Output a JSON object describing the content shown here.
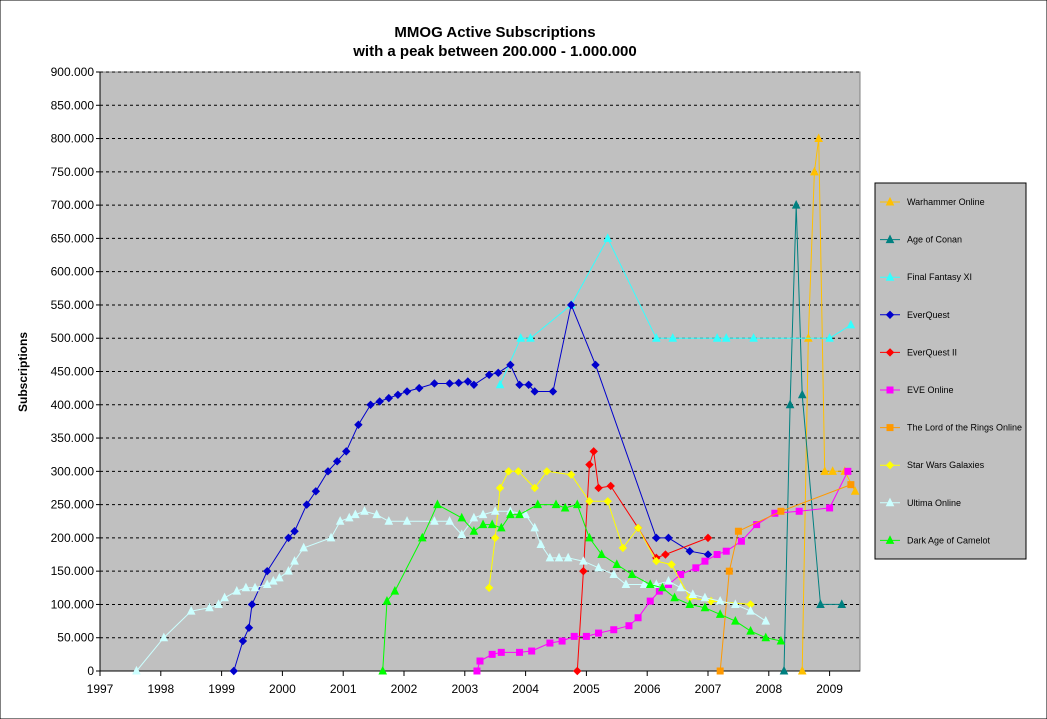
{
  "chart_data": {
    "type": "line",
    "title": "MMOG Active Subscriptions",
    "subtitle": "with a peak between 200.000 - 1.000.000",
    "ylabel": "Subscriptions",
    "xlabel": "",
    "xlim": [
      1997,
      2009.5
    ],
    "ylim": [
      0,
      900000
    ],
    "y_ticks": [
      "0",
      "50.000",
      "100.000",
      "150.000",
      "200.000",
      "250.000",
      "300.000",
      "350.000",
      "400.000",
      "450.000",
      "500.000",
      "550.000",
      "600.000",
      "650.000",
      "700.000",
      "750.000",
      "800.000",
      "850.000",
      "900.000"
    ],
    "x_ticks": [
      "1997",
      "1998",
      "1999",
      "2000",
      "2001",
      "2002",
      "2003",
      "2004",
      "2005",
      "2006",
      "2007",
      "2008",
      "2009"
    ],
    "grid": "horizontal dashed",
    "plot_background": "#c0c0c0",
    "legend_position": "right",
    "series": [
      {
        "name": "Warhammer Online",
        "color": "#ffc000",
        "marker": "triangle",
        "points": [
          [
            2008.55,
            0
          ],
          [
            2008.65,
            500000
          ],
          [
            2008.75,
            750000
          ],
          [
            2008.82,
            800000
          ],
          [
            2008.92,
            300000
          ],
          [
            2009.05,
            300000
          ],
          [
            2009.25,
            300000
          ],
          [
            2009.42,
            270000
          ]
        ]
      },
      {
        "name": "Age of Conan",
        "color": "#008080",
        "marker": "triangle",
        "points": [
          [
            2008.25,
            0
          ],
          [
            2008.35,
            400000
          ],
          [
            2008.45,
            700000
          ],
          [
            2008.55,
            415000
          ],
          [
            2008.85,
            100000
          ],
          [
            2009.2,
            100000
          ]
        ]
      },
      {
        "name": "Final Fantasy XI",
        "color": "#33ffff",
        "marker": "triangle",
        "points": [
          [
            2003.58,
            430000
          ],
          [
            2003.92,
            500000
          ],
          [
            2004.08,
            500000
          ],
          [
            2004.75,
            550000
          ],
          [
            2005.35,
            650000
          ],
          [
            2006.15,
            500000
          ],
          [
            2006.42,
            500000
          ],
          [
            2007.15,
            500000
          ],
          [
            2007.3,
            500000
          ],
          [
            2007.75,
            500000
          ],
          [
            2009.0,
            500000
          ],
          [
            2009.35,
            520000
          ]
        ]
      },
      {
        "name": "EverQuest",
        "color": "#0000cc",
        "marker": "diamond",
        "points": [
          [
            1999.2,
            0
          ],
          [
            1999.35,
            45000
          ],
          [
            1999.45,
            65000
          ],
          [
            1999.5,
            100000
          ],
          [
            1999.75,
            150000
          ],
          [
            2000.1,
            200000
          ],
          [
            2000.2,
            210000
          ],
          [
            2000.4,
            250000
          ],
          [
            2000.55,
            270000
          ],
          [
            2000.75,
            300000
          ],
          [
            2000.9,
            315000
          ],
          [
            2001.05,
            330000
          ],
          [
            2001.25,
            370000
          ],
          [
            2001.45,
            400000
          ],
          [
            2001.6,
            405000
          ],
          [
            2001.75,
            410000
          ],
          [
            2001.9,
            415000
          ],
          [
            2002.05,
            420000
          ],
          [
            2002.25,
            425000
          ],
          [
            2002.5,
            432000
          ],
          [
            2002.75,
            432000
          ],
          [
            2002.9,
            433000
          ],
          [
            2003.05,
            435000
          ],
          [
            2003.15,
            430000
          ],
          [
            2003.4,
            445000
          ],
          [
            2003.55,
            448000
          ],
          [
            2003.75,
            460000
          ],
          [
            2003.9,
            430000
          ],
          [
            2004.05,
            430000
          ],
          [
            2004.15,
            420000
          ],
          [
            2004.45,
            420000
          ],
          [
            2004.75,
            550000
          ],
          [
            2005.15,
            460000
          ],
          [
            2006.15,
            200000
          ],
          [
            2006.35,
            200000
          ],
          [
            2006.7,
            180000
          ],
          [
            2007.0,
            175000
          ]
        ]
      },
      {
        "name": "EverQuest II",
        "color": "#ff0000",
        "marker": "diamond",
        "points": [
          [
            2004.85,
            0
          ],
          [
            2004.95,
            150000
          ],
          [
            2005.05,
            310000
          ],
          [
            2005.12,
            330000
          ],
          [
            2005.2,
            275000
          ],
          [
            2005.4,
            278000
          ],
          [
            2005.85,
            215000
          ],
          [
            2006.15,
            170000
          ],
          [
            2006.3,
            175000
          ],
          [
            2007.0,
            200000
          ]
        ]
      },
      {
        "name": "EVE Online",
        "color": "#ff00ff",
        "marker": "square",
        "points": [
          [
            2003.2,
            0
          ],
          [
            2003.25,
            15000
          ],
          [
            2003.45,
            25000
          ],
          [
            2003.6,
            28000
          ],
          [
            2003.9,
            28000
          ],
          [
            2004.1,
            30000
          ],
          [
            2004.4,
            42000
          ],
          [
            2004.6,
            45000
          ],
          [
            2004.8,
            52000
          ],
          [
            2005.0,
            52000
          ],
          [
            2005.2,
            57000
          ],
          [
            2005.45,
            62000
          ],
          [
            2005.7,
            68000
          ],
          [
            2005.85,
            80000
          ],
          [
            2006.05,
            105000
          ],
          [
            2006.2,
            120000
          ],
          [
            2006.35,
            130000
          ],
          [
            2006.55,
            145000
          ],
          [
            2006.8,
            155000
          ],
          [
            2006.95,
            165000
          ],
          [
            2007.15,
            175000
          ],
          [
            2007.3,
            180000
          ],
          [
            2007.55,
            195000
          ],
          [
            2007.8,
            220000
          ],
          [
            2008.1,
            237000
          ],
          [
            2008.5,
            240000
          ],
          [
            2009.0,
            245000
          ],
          [
            2009.3,
            300000
          ]
        ]
      },
      {
        "name": "The Lord of the Rings Online",
        "color": "#ff9900",
        "marker": "square",
        "points": [
          [
            2007.2,
            0
          ],
          [
            2007.35,
            150000
          ],
          [
            2007.5,
            210000
          ],
          [
            2008.2,
            240000
          ],
          [
            2009.35,
            280000
          ]
        ]
      },
      {
        "name": "Star Wars Galaxies",
        "color": "#ffff00",
        "marker": "diamond",
        "points": [
          [
            2003.4,
            125000
          ],
          [
            2003.5,
            200000
          ],
          [
            2003.58,
            275000
          ],
          [
            2003.72,
            300000
          ],
          [
            2003.88,
            300000
          ],
          [
            2004.15,
            275000
          ],
          [
            2004.35,
            300000
          ],
          [
            2004.75,
            295000
          ],
          [
            2005.05,
            255000
          ],
          [
            2005.35,
            255000
          ],
          [
            2005.6,
            185000
          ],
          [
            2005.85,
            215000
          ],
          [
            2006.15,
            165000
          ],
          [
            2006.4,
            160000
          ],
          [
            2006.7,
            110000
          ],
          [
            2007.05,
            105000
          ],
          [
            2007.7,
            100000
          ]
        ]
      },
      {
        "name": "Ultima Online",
        "color": "#ccffff",
        "marker": "triangle",
        "points": [
          [
            1997.6,
            0
          ],
          [
            1998.05,
            50000
          ],
          [
            1998.5,
            90000
          ],
          [
            1998.8,
            95000
          ],
          [
            1998.95,
            100000
          ],
          [
            1999.05,
            110000
          ],
          [
            1999.25,
            120000
          ],
          [
            1999.4,
            125000
          ],
          [
            1999.55,
            125000
          ],
          [
            1999.75,
            130000
          ],
          [
            1999.85,
            135000
          ],
          [
            1999.95,
            140000
          ],
          [
            2000.1,
            150000
          ],
          [
            2000.2,
            165000
          ],
          [
            2000.35,
            185000
          ],
          [
            2000.8,
            200000
          ],
          [
            2000.95,
            225000
          ],
          [
            2001.1,
            230000
          ],
          [
            2001.2,
            235000
          ],
          [
            2001.35,
            240000
          ],
          [
            2001.55,
            235000
          ],
          [
            2001.75,
            225000
          ],
          [
            2002.05,
            225000
          ],
          [
            2002.5,
            225000
          ],
          [
            2002.75,
            225000
          ],
          [
            2002.95,
            205000
          ],
          [
            2003.15,
            230000
          ],
          [
            2003.3,
            235000
          ],
          [
            2003.5,
            240000
          ],
          [
            2003.75,
            240000
          ],
          [
            2004.0,
            235000
          ],
          [
            2004.15,
            215000
          ],
          [
            2004.25,
            190000
          ],
          [
            2004.4,
            170000
          ],
          [
            2004.55,
            170000
          ],
          [
            2004.7,
            170000
          ],
          [
            2004.95,
            165000
          ],
          [
            2005.2,
            155000
          ],
          [
            2005.45,
            145000
          ],
          [
            2005.65,
            130000
          ],
          [
            2005.95,
            130000
          ],
          [
            2006.15,
            130000
          ],
          [
            2006.35,
            135000
          ],
          [
            2006.55,
            125000
          ],
          [
            2006.75,
            115000
          ],
          [
            2006.95,
            110000
          ],
          [
            2007.2,
            105000
          ],
          [
            2007.45,
            100000
          ],
          [
            2007.7,
            90000
          ],
          [
            2007.95,
            75000
          ]
        ]
      },
      {
        "name": "Dark Age of Camelot",
        "color": "#00ff00",
        "marker": "triangle",
        "points": [
          [
            2001.65,
            0
          ],
          [
            2001.72,
            105000
          ],
          [
            2001.85,
            120000
          ],
          [
            2002.3,
            200000
          ],
          [
            2002.55,
            250000
          ],
          [
            2002.95,
            230000
          ],
          [
            2003.15,
            210000
          ],
          [
            2003.3,
            220000
          ],
          [
            2003.45,
            220000
          ],
          [
            2003.6,
            215000
          ],
          [
            2003.75,
            235000
          ],
          [
            2003.9,
            235000
          ],
          [
            2004.2,
            250000
          ],
          [
            2004.5,
            250000
          ],
          [
            2004.65,
            245000
          ],
          [
            2004.85,
            250000
          ],
          [
            2005.05,
            200000
          ],
          [
            2005.25,
            175000
          ],
          [
            2005.5,
            160000
          ],
          [
            2005.75,
            145000
          ],
          [
            2006.05,
            130000
          ],
          [
            2006.25,
            125000
          ],
          [
            2006.45,
            110000
          ],
          [
            2006.7,
            100000
          ],
          [
            2006.95,
            95000
          ],
          [
            2007.2,
            85000
          ],
          [
            2007.45,
            75000
          ],
          [
            2007.7,
            60000
          ],
          [
            2007.95,
            50000
          ],
          [
            2008.2,
            45000
          ]
        ]
      }
    ]
  }
}
